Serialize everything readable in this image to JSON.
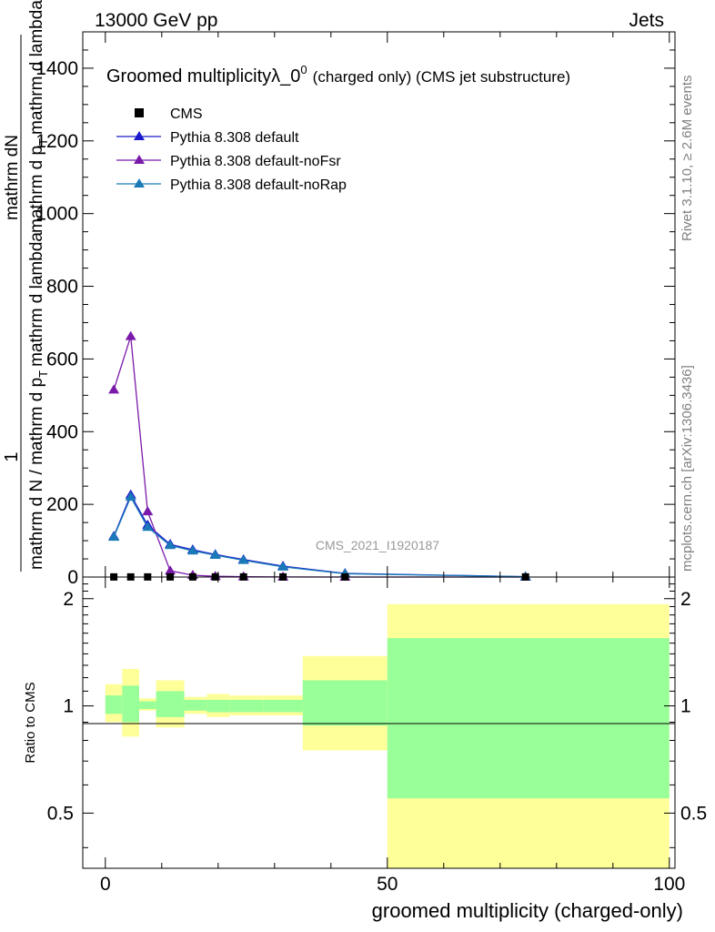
{
  "header": {
    "left": "13000 GeV pp",
    "right": "Jets"
  },
  "side_text": {
    "rivet": "Rivet 3.1.10, ≥ 2.6M events",
    "mcplots": "mcplots.cern.ch [arXiv:1306.3436]"
  },
  "chart_data": {
    "type": "line",
    "title": "Groomed multiplicityλ_0",
    "title_sup": "0",
    "title_suffix": "(charged only) (CMS jet substructure)",
    "watermark": "CMS_2021_I1920187",
    "ylabel_lines": [
      "1",
      "mathrm d N / mathrm d p",
      "T",
      "mathrm d lambda",
      "mathrm dN",
      "mathrm d p",
      "T",
      "mathrm d lambda"
    ],
    "ylabel": {
      "numerator": "1",
      "denominator_main": "mathrm d N / mathrm d p",
      "denominator_sub": "T",
      "denominator_tail": "mathrm d lambda",
      "frac_numerator_main": "mathrm dN",
      "frac_denominator_main": "mathrm d p",
      "frac_denominator_sub": "T",
      "frac_denominator_tail": "mathrm d lambda"
    },
    "xlabel": "groomed multiplicity (charged-only)",
    "ratio_ylabel": "Ratio to CMS",
    "xlim": [
      -4,
      101
    ],
    "ylim": [
      0,
      1500
    ],
    "ratio_ylim": [
      0.35,
      2.3
    ],
    "x_ticks": [
      0,
      50,
      100
    ],
    "y_ticks": [
      0,
      200,
      400,
      600,
      800,
      1000,
      1200,
      1400
    ],
    "ratio_ticks": [
      0.5,
      1,
      2
    ],
    "legend": [
      {
        "name": "CMS",
        "marker": "square",
        "color": "#000000"
      },
      {
        "name": "Pythia 8.308 default",
        "marker": "triangle",
        "color": "#1a1acc"
      },
      {
        "name": "Pythia 8.308 default-noFsr",
        "marker": "triangle",
        "color": "#7a1aaa"
      },
      {
        "name": "Pythia 8.308 default-noRap",
        "marker": "triangle",
        "color": "#1a7ab8"
      }
    ],
    "cms": {
      "x": [
        1.5,
        4.5,
        7.5,
        11.5,
        15.5,
        19.5,
        24.5,
        31.5,
        42.5,
        74.5
      ],
      "y": [
        0.3,
        0.3,
        0.3,
        0.3,
        0.3,
        0.3,
        0.3,
        0.3,
        0.3,
        0.3
      ]
    },
    "series": [
      {
        "name": "Pythia 8.308 default",
        "x": [
          1.5,
          4.5,
          7.5,
          11.5,
          15.5,
          19.5,
          24.5,
          31.5,
          42.5,
          74.5
        ],
        "y": [
          112,
          226,
          143,
          90,
          75,
          62,
          48,
          30,
          10,
          1
        ]
      },
      {
        "name": "Pythia 8.308 default-noFsr",
        "x": [
          1.5,
          4.5,
          7.5,
          11.5,
          15.5,
          19.5,
          24.5,
          31.5,
          42.5,
          74.5
        ],
        "y": [
          515,
          662,
          180,
          17,
          5,
          2,
          1,
          0.3,
          0.1,
          0.1
        ]
      },
      {
        "name": "Pythia 8.308 default-noRap",
        "x": [
          1.5,
          4.5,
          7.5,
          11.5,
          15.5,
          19.5,
          24.5,
          31.5,
          42.5,
          74.5
        ],
        "y": [
          110,
          220,
          137,
          87,
          72,
          60,
          46,
          28,
          9,
          1
        ]
      }
    ],
    "ratio_bands": {
      "x_edges": [
        0,
        3,
        6,
        9,
        14,
        18,
        22,
        28,
        35,
        50,
        100
      ],
      "yellow_low": [
        0.9,
        0.82,
        0.97,
        0.87,
        0.95,
        0.93,
        0.94,
        0.94,
        0.75,
        0.35
      ],
      "yellow_high": [
        1.15,
        1.27,
        1.05,
        1.18,
        1.06,
        1.08,
        1.07,
        1.07,
        1.38,
        1.93
      ],
      "green_low": [
        0.95,
        0.9,
        0.98,
        0.93,
        0.97,
        0.96,
        0.96,
        0.96,
        0.88,
        0.55
      ],
      "green_high": [
        1.07,
        1.14,
        1.03,
        1.1,
        1.04,
        1.04,
        1.04,
        1.04,
        1.18,
        1.55
      ]
    }
  }
}
